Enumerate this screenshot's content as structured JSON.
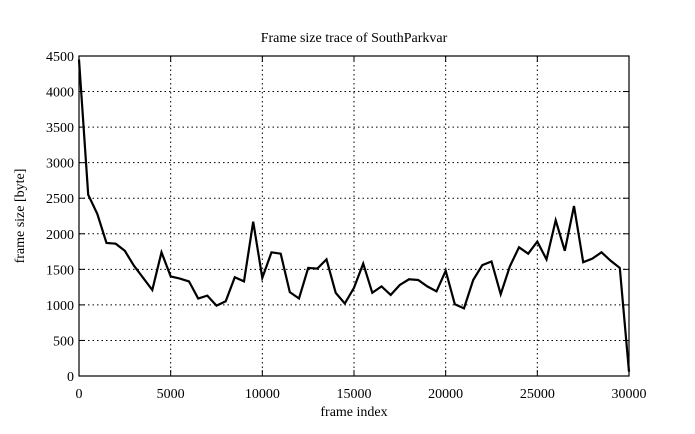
{
  "chart_data": {
    "type": "line",
    "title": "Frame size trace of SouthParkvar",
    "xlabel": "frame index",
    "ylabel": "frame size [byte]",
    "xlim": [
      0,
      30000
    ],
    "ylim": [
      0,
      4500
    ],
    "grid": true,
    "x_ticks": [
      "0",
      "5000",
      "10000",
      "15000",
      "20000",
      "25000",
      "30000"
    ],
    "y_ticks": [
      "0",
      "500",
      "1000",
      "1500",
      "2000",
      "2500",
      "3000",
      "3500",
      "4000",
      "4500"
    ],
    "series": [
      {
        "x": [
          0,
          500,
          1000,
          1500,
          2000,
          2500,
          3000,
          3500,
          4000,
          4500,
          5000,
          5500,
          6000,
          6500,
          7000,
          7500,
          8000,
          8500,
          9000,
          9500,
          10000,
          10500,
          11000,
          11500,
          12000,
          12500,
          13000,
          13500,
          14000,
          14500,
          15000,
          15500,
          16000,
          16500,
          17000,
          17500,
          18000,
          18500,
          19000,
          19500,
          20000,
          20500,
          21000,
          21500,
          22000,
          22500,
          23000,
          23500,
          24000,
          24500,
          25000,
          25500,
          26000,
          26500,
          27000,
          27500,
          28000,
          28500,
          29000,
          29500,
          30000
        ],
        "values": [
          4450,
          2550,
          2280,
          1870,
          1860,
          1760,
          1550,
          1380,
          1210,
          1740,
          1400,
          1370,
          1330,
          1090,
          1130,
          990,
          1050,
          1390,
          1330,
          2170,
          1380,
          1740,
          1720,
          1180,
          1090,
          1520,
          1510,
          1640,
          1170,
          1020,
          1240,
          1580,
          1170,
          1260,
          1140,
          1280,
          1360,
          1350,
          1260,
          1190,
          1480,
          1010,
          950,
          1350,
          1560,
          1610,
          1150,
          1540,
          1810,
          1720,
          1890,
          1640,
          2190,
          1760,
          2390,
          1600,
          1650,
          1740,
          1620,
          1520,
          60
        ]
      }
    ]
  }
}
